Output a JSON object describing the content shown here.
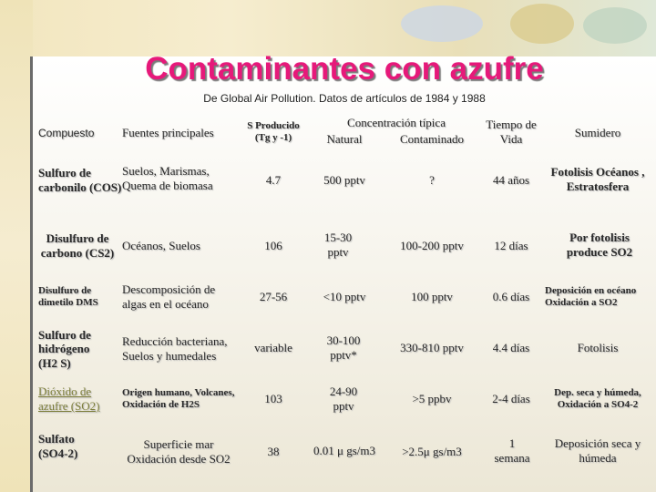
{
  "title": "Contaminantes con azufre",
  "subtitle": "De Global Air Pollution. Datos de artículos de 1984 y 1988",
  "headers": {
    "compuesto": "Compuesto",
    "fuentes": "Fuentes principales",
    "producido": "S Producido (Tg y -1)",
    "concentracion": "Concentración típica",
    "natural": "Natural",
    "contaminado": "Contaminado",
    "tiempo": "Tiempo de Vida",
    "sumidero": "Sumidero"
  },
  "rows": [
    {
      "compuesto": "Sulfuro de carbonilo (COS)",
      "fuentes": "Suelos, Marismas, Quema de biomasa",
      "producido": "4.7",
      "natural": "500 pptv",
      "contaminado": "?",
      "tiempo": "44 años",
      "sumidero": "Fotolisis Océanos , Estratosfera"
    },
    {
      "compuesto": "Disulfuro de carbono (CS2)",
      "fuentes": "Océanos, Suelos",
      "producido": "106",
      "natural": "15-30 pptv",
      "contaminado": "100-200 pptv",
      "tiempo": "12 días",
      "sumidero": "Por fotolisis produce SO2"
    },
    {
      "compuesto": "Disulfuro de dimetilo DMS",
      "fuentes": "Descomposición de algas en el océano",
      "producido": "27-56",
      "natural": "<10 pptv",
      "contaminado": "100 pptv",
      "tiempo": "0.6 días",
      "sumidero": "Deposición en océano Oxidación a SO2"
    },
    {
      "compuesto": "Sulfuro de hidrógeno (H2 S)",
      "fuentes": "Reducción bacteriana, Suelos y humedales",
      "producido": "variable",
      "natural": "30-100 pptv*",
      "contaminado": "330-810 pptv",
      "tiempo": "4.4 días",
      "sumidero": "Fotolisis"
    },
    {
      "compuesto": "Dióxido de azufre (SO2)",
      "fuentes": "Origen humano, Volcanes, Oxidación de H2S",
      "producido": "103",
      "natural": "24-90 pptv",
      "contaminado": ">5 ppbv",
      "tiempo": "2-4 días",
      "sumidero": "Dep. seca y húmeda, Oxidación a SO4-2"
    },
    {
      "compuesto": "Sulfato (SO4-2)",
      "fuentes": "Superficie mar Oxidación desde SO2",
      "producido": "38",
      "natural": "0.01 μ gs/m3",
      "contaminado": ">2.5μ gs/m3",
      "tiempo": "1 semana",
      "sumidero": "Deposición seca y húmeda"
    }
  ]
}
